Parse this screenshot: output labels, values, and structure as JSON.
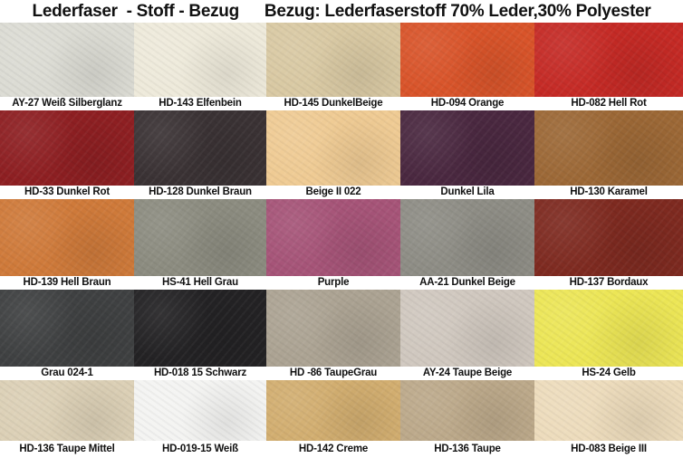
{
  "header": {
    "left": "Lederfaser  - Stoff - Bezug",
    "right": "Bezug: Lederfaserstoff 70% Leder,30% Polyester"
  },
  "swatches": [
    {
      "label": "AY-27 Weiß Silberglanz",
      "color": "#dcdcd4"
    },
    {
      "label": "HD-143 Elfenbein",
      "color": "#eeeadb"
    },
    {
      "label": "HD-145 DunkelBeige",
      "color": "#d9c9a3"
    },
    {
      "label": "HD-094 Orange",
      "color": "#d9542a"
    },
    {
      "label": "HD-082 Hell Rot",
      "color": "#c52a25"
    },
    {
      "label": "HD-33 Dunkel Rot",
      "color": "#8e1f22"
    },
    {
      "label": "HD-128 Dunkel Braun",
      "color": "#3a3234"
    },
    {
      "label": "Beige II 022",
      "color": "#efcb94"
    },
    {
      "label": "Dunkel Lila",
      "color": "#4a2840"
    },
    {
      "label": "HD-130 Karamel",
      "color": "#9c6836"
    },
    {
      "label": "HD-139 Hell Braun",
      "color": "#cf7a3a"
    },
    {
      "label": "HS-41 Hell Grau",
      "color": "#8c8c80"
    },
    {
      "label": "Purple",
      "color": "#a65478"
    },
    {
      "label": "AA-21 Dunkel Beige",
      "color": "#8e8d85"
    },
    {
      "label": "HD-137 Bordaux",
      "color": "#7e2a20"
    },
    {
      "label": "Grau 024-1",
      "color": "#3f4142"
    },
    {
      "label": "HD-018 15 Schwarz",
      "color": "#232224"
    },
    {
      "label": "HD -86 TaupeGrau",
      "color": "#aca393"
    },
    {
      "label": "AY-24 Taupe Beige",
      "color": "#d0c8bf"
    },
    {
      "label": "HS-24 Gelb",
      "color": "#ece656"
    },
    {
      "label": "HD-136 Taupe Mittel",
      "color": "#dcd0b6"
    },
    {
      "label": "HD-019-15 Weiß",
      "color": "#f4f4f2"
    },
    {
      "label": "HD-142 Creme",
      "color": "#d2ae70"
    },
    {
      "label": "HD-136 Taupe",
      "color": "#bca98a"
    },
    {
      "label": "HD-083 Beige III",
      "color": "#eddcbc"
    }
  ]
}
